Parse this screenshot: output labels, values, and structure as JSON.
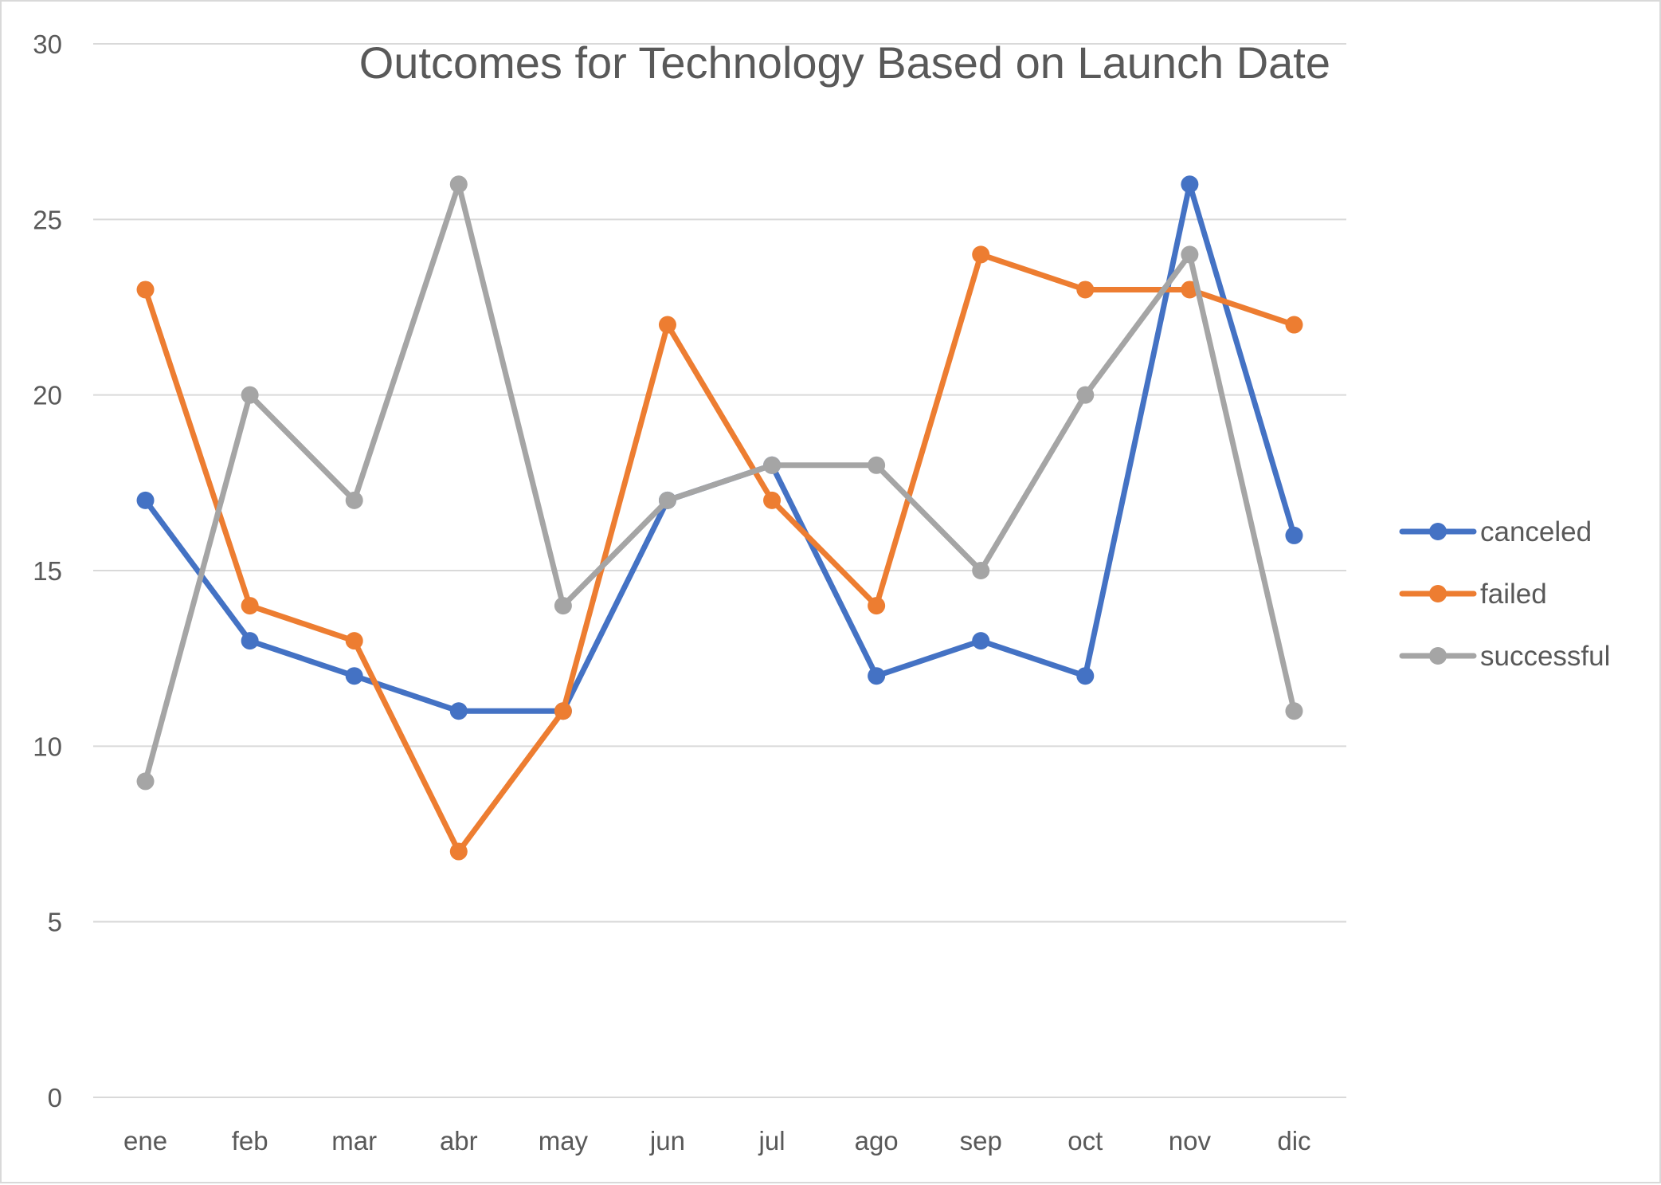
{
  "chart_data": {
    "type": "line",
    "title": "Outcomes for Technology Based on Launch Date",
    "xlabel": "",
    "ylabel": "",
    "ylim": [
      0,
      30
    ],
    "yticks": [
      0,
      5,
      10,
      15,
      20,
      25,
      30
    ],
    "grid": true,
    "legend_position": "right",
    "categories": [
      "ene",
      "feb",
      "mar",
      "abr",
      "may",
      "jun",
      "jul",
      "ago",
      "sep",
      "oct",
      "nov",
      "dic"
    ],
    "series": [
      {
        "name": "canceled",
        "color": "#4472c4",
        "values": [
          17,
          13,
          12,
          11,
          11,
          17,
          18,
          12,
          13,
          12,
          26,
          16
        ]
      },
      {
        "name": "failed",
        "color": "#ed7d31",
        "values": [
          23,
          14,
          13,
          7,
          11,
          22,
          17,
          14,
          24,
          23,
          23,
          22
        ]
      },
      {
        "name": "successful",
        "color": "#a5a5a5",
        "values": [
          9,
          20,
          17,
          26,
          14,
          17,
          18,
          18,
          15,
          20,
          24,
          11
        ]
      }
    ]
  }
}
